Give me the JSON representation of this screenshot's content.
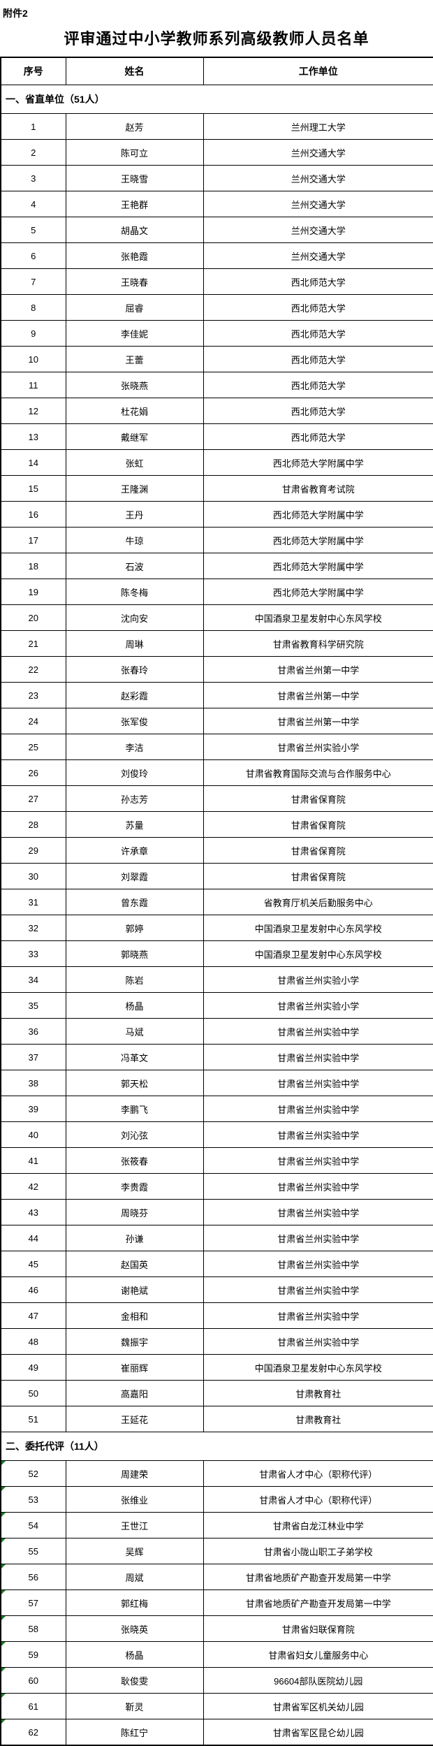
{
  "attachment_label": "附件2",
  "title": "评审通过中小学教师系列高级教师人员名单",
  "colors": {
    "border": "#000000",
    "background": "#ffffff",
    "text": "#000000",
    "error_marker": "#1e7b1e"
  },
  "table": {
    "columns": [
      "序号",
      "姓名",
      "工作单位"
    ],
    "sections": [
      {
        "header": "一、省直单位（51人）",
        "error_markers": false,
        "rows": [
          [
            "1",
            "赵芳",
            "兰州理工大学"
          ],
          [
            "2",
            "陈可立",
            "兰州交通大学"
          ],
          [
            "3",
            "王晓雪",
            "兰州交通大学"
          ],
          [
            "4",
            "王艳群",
            "兰州交通大学"
          ],
          [
            "5",
            "胡晶文",
            "兰州交通大学"
          ],
          [
            "6",
            "张艳霞",
            "兰州交通大学"
          ],
          [
            "7",
            "王晓春",
            "西北师范大学"
          ],
          [
            "8",
            "屈睿",
            "西北师范大学"
          ],
          [
            "9",
            "李佳妮",
            "西北师范大学"
          ],
          [
            "10",
            "王蕾",
            "西北师范大学"
          ],
          [
            "11",
            "张晓燕",
            "西北师范大学"
          ],
          [
            "12",
            "杜花娟",
            "西北师范大学"
          ],
          [
            "13",
            "戴继军",
            "西北师范大学"
          ],
          [
            "14",
            "张虹",
            "西北师范大学附属中学"
          ],
          [
            "15",
            "王隆渊",
            "甘肃省教育考试院"
          ],
          [
            "16",
            "王丹",
            "西北师范大学附属中学"
          ],
          [
            "17",
            "牛琼",
            "西北师范大学附属中学"
          ],
          [
            "18",
            "石波",
            "西北师范大学附属中学"
          ],
          [
            "19",
            "陈冬梅",
            "西北师范大学附属中学"
          ],
          [
            "20",
            "沈向安",
            "中国酒泉卫星发射中心东风学校"
          ],
          [
            "21",
            "周琳",
            "甘肃省教育科学研究院"
          ],
          [
            "22",
            "张春玲",
            "甘肃省兰州第一中学"
          ],
          [
            "23",
            "赵彩霞",
            "甘肃省兰州第一中学"
          ],
          [
            "24",
            "张军俊",
            "甘肃省兰州第一中学"
          ],
          [
            "25",
            "李洁",
            "甘肃省兰州实验小学"
          ],
          [
            "26",
            "刘俊玲",
            "甘肃省教育国际交流与合作服务中心"
          ],
          [
            "27",
            "孙志芳",
            "甘肃省保育院"
          ],
          [
            "28",
            "苏量",
            "甘肃省保育院"
          ],
          [
            "29",
            "许承章",
            "甘肃省保育院"
          ],
          [
            "30",
            "刘翠霞",
            "甘肃省保育院"
          ],
          [
            "31",
            "曾东霞",
            "省教育厅机关后勤服务中心"
          ],
          [
            "32",
            "郭婷",
            "中国酒泉卫星发射中心东风学校"
          ],
          [
            "33",
            "郭晓燕",
            "中国酒泉卫星发射中心东风学校"
          ],
          [
            "34",
            "陈岩",
            "甘肃省兰州实验小学"
          ],
          [
            "35",
            "杨晶",
            "甘肃省兰州实验小学"
          ],
          [
            "36",
            "马斌",
            "甘肃省兰州实验中学"
          ],
          [
            "37",
            "冯革文",
            "甘肃省兰州实验中学"
          ],
          [
            "38",
            "郭天松",
            "甘肃省兰州实验中学"
          ],
          [
            "39",
            "李鹏飞",
            "甘肃省兰州实验中学"
          ],
          [
            "40",
            "刘沁弦",
            "甘肃省兰州实验中学"
          ],
          [
            "41",
            "张筱春",
            "甘肃省兰州实验中学"
          ],
          [
            "42",
            "李贵霞",
            "甘肃省兰州实验中学"
          ],
          [
            "43",
            "周晓芬",
            "甘肃省兰州实验中学"
          ],
          [
            "44",
            "孙谦",
            "甘肃省兰州实验中学"
          ],
          [
            "45",
            "赵国英",
            "甘肃省兰州实验中学"
          ],
          [
            "46",
            "谢艳斌",
            "甘肃省兰州实验中学"
          ],
          [
            "47",
            "金相和",
            "甘肃省兰州实验中学"
          ],
          [
            "48",
            "魏振宇",
            "甘肃省兰州实验中学"
          ],
          [
            "49",
            "崔丽辉",
            "中国酒泉卫星发射中心东风学校"
          ],
          [
            "50",
            "高嘉阳",
            "甘肃教育社"
          ],
          [
            "51",
            "王延花",
            "甘肃教育社"
          ]
        ]
      },
      {
        "header": "二、委托代评（11人）",
        "error_markers": true,
        "rows": [
          [
            "52",
            "周建荣",
            "甘肃省人才中心（职称代评）"
          ],
          [
            "53",
            "张维业",
            "甘肃省人才中心（职称代评）"
          ],
          [
            "54",
            "王世江",
            "甘肃省白龙江林业中学"
          ],
          [
            "55",
            "吴辉",
            "甘肃省小陇山职工子弟学校"
          ],
          [
            "56",
            "周斌",
            "甘肃省地质矿产勘查开发局第一中学"
          ],
          [
            "57",
            "郭红梅",
            "甘肃省地质矿产勘查开发局第一中学"
          ],
          [
            "58",
            "张晓英",
            "甘肃省妇联保育院"
          ],
          [
            "59",
            "杨晶",
            "甘肃省妇女儿童服务中心"
          ],
          [
            "60",
            "耿俊雯",
            "96604部队医院幼儿园"
          ],
          [
            "61",
            "靳灵",
            "甘肃省军区机关幼儿园"
          ],
          [
            "62",
            "陈红宁",
            "甘肃省军区昆仑幼儿园"
          ]
        ]
      }
    ]
  }
}
